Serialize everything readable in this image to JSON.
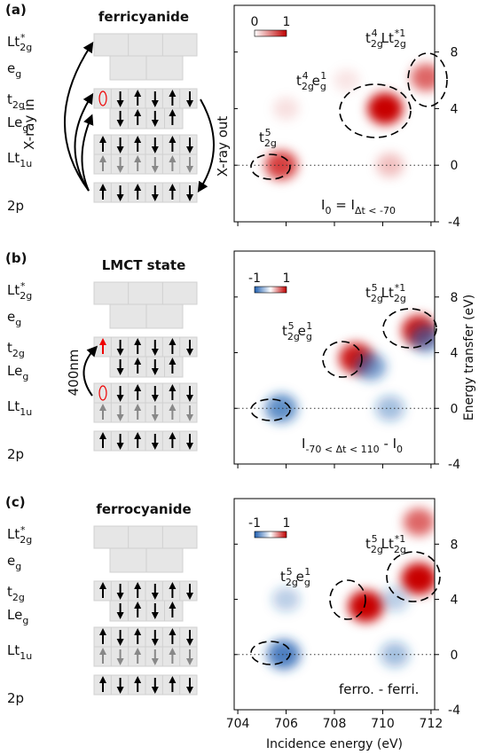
{
  "diagrams": [
    {
      "label": "(a)",
      "title": "ferricyanide",
      "levels": [
        {
          "t": "Lt",
          "sup": "*",
          "sub": "2g"
        },
        {
          "t": "e",
          "sub": "g"
        },
        {
          "t": "t",
          "sub": "2g"
        },
        {
          "t": "Le",
          "sub": "g"
        },
        {
          "t": "Lt",
          "sub": "1u"
        },
        {
          "t": "2p"
        }
      ],
      "arrow_labels": [
        "X-ray in",
        "X-ray out"
      ]
    },
    {
      "label": "(b)",
      "title": "LMCT state",
      "levels": [
        {
          "t": "Lt",
          "sup": "*",
          "sub": "2g"
        },
        {
          "t": "e",
          "sub": "g"
        },
        {
          "t": "t",
          "sub": "2g"
        },
        {
          "t": "Le",
          "sub": "g"
        },
        {
          "t": "Lt",
          "sub": "1u"
        },
        {
          "t": "2p"
        }
      ],
      "arrow_labels": [
        "400nm"
      ]
    },
    {
      "label": "(c)",
      "title": "ferrocyanide",
      "levels": [
        {
          "t": "Lt",
          "sup": "*",
          "sub": "2g"
        },
        {
          "t": "e",
          "sub": "g"
        },
        {
          "t": "t",
          "sub": "2g"
        },
        {
          "t": "Le",
          "sub": "g"
        },
        {
          "t": "Lt",
          "sub": "1u"
        },
        {
          "t": "2p"
        }
      ],
      "arrow_labels": []
    }
  ],
  "chart_data": [
    {
      "type": "heatmap",
      "x": [
        705.8,
        710.1,
        711.8,
        710.3,
        706.0,
        708.5
      ],
      "y": [
        0,
        4,
        6.2,
        0,
        4,
        6
      ],
      "values": [
        0.75,
        1.0,
        0.6,
        0.25,
        0.12,
        0.1
      ],
      "xlim": [
        703.85,
        712.15
      ],
      "ylim": [
        -4,
        11.3
      ],
      "xticks": [
        704,
        706,
        708,
        710,
        712
      ],
      "yticks": [
        -4,
        0,
        4,
        8
      ],
      "hline": 0,
      "clim": [
        0,
        1
      ],
      "cticks": [
        0,
        1
      ],
      "annotations": [
        [
          {
            "t": "t",
            "sup": "4",
            "sub": "2g"
          },
          {
            "t": "Lt",
            "sup": "*1",
            "sub": "2g"
          }
        ],
        [
          {
            "t": "t",
            "sup": "4",
            "sub": "2g"
          },
          {
            "t": "e",
            "sup": "1",
            "sub": "g"
          }
        ],
        [
          {
            "t": "t",
            "sup": "5",
            "sub": "2g"
          }
        ],
        [
          {
            "t": "I",
            "sub": "0"
          },
          {
            "t": " = I",
            "sub": "Δt < -70"
          }
        ]
      ]
    },
    {
      "type": "heatmap",
      "x": [
        705.8,
        708.9,
        709.5,
        711.5,
        711.8,
        710.3
      ],
      "y": [
        0,
        3.6,
        3.0,
        5.6,
        5.0,
        0
      ],
      "values": [
        -0.7,
        0.9,
        -0.6,
        0.9,
        -0.6,
        -0.4
      ],
      "xlim": [
        703.85,
        712.15
      ],
      "ylim": [
        -4,
        11.3
      ],
      "xticks": [
        704,
        706,
        708,
        710,
        712
      ],
      "yticks": [
        -4,
        0,
        4,
        8
      ],
      "hline": 0,
      "clim": [
        -1,
        1
      ],
      "cticks": [
        -1,
        1
      ],
      "ylabel": "Energy transfer (eV)",
      "annotations": [
        [
          {
            "t": "t",
            "sup": "5",
            "sub": "2g"
          },
          {
            "t": "Lt",
            "sup": "*1",
            "sub": "2g"
          }
        ],
        [
          {
            "t": "t",
            "sup": "5",
            "sub": "2g"
          },
          {
            "t": "e",
            "sup": "1",
            "sub": "g"
          }
        ],
        [
          {
            "t": "I",
            "sub": "-70 < Δt < 110"
          },
          {
            "t": " - I",
            "sub": "0"
          }
        ]
      ]
    },
    {
      "type": "heatmap",
      "x": [
        705.9,
        709.3,
        711.5,
        711.5,
        710.5,
        710.5,
        706.0
      ],
      "y": [
        0,
        3.5,
        5.5,
        9.6,
        0,
        4,
        4
      ],
      "values": [
        -0.8,
        1.0,
        1.0,
        0.6,
        -0.4,
        -0.3,
        -0.3
      ],
      "xlim": [
        703.85,
        712.15
      ],
      "ylim": [
        -4,
        11.3
      ],
      "xticks": [
        704,
        706,
        708,
        710,
        712
      ],
      "yticks": [
        -4,
        0,
        4,
        8
      ],
      "hline": 0,
      "clim": [
        -1,
        1
      ],
      "cticks": [
        -1,
        1
      ],
      "xlabel": "Incidence energy (eV)",
      "annotations": [
        [
          {
            "t": "t",
            "sup": "5",
            "sub": "2g"
          },
          {
            "t": "Lt",
            "sup": "*1",
            "sub": "2g"
          }
        ],
        [
          {
            "t": "t",
            "sup": "5",
            "sub": "2g"
          },
          {
            "t": "e",
            "sup": "1",
            "sub": "g"
          }
        ],
        [
          {
            "t": "ferro. - ferri."
          }
        ]
      ]
    }
  ]
}
